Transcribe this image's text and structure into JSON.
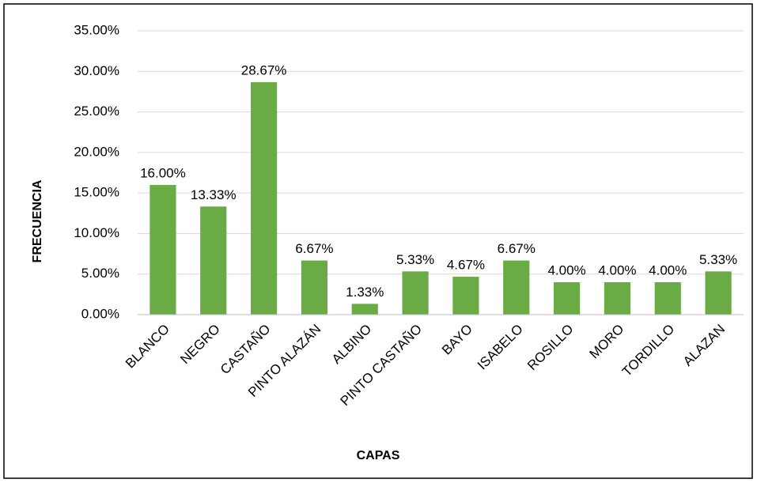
{
  "chart_data": {
    "type": "bar",
    "x_label": "CAPAS",
    "y_label": "FRECUENCIA",
    "categories": [
      "BLANCO",
      "NEGRO",
      "CASTAÑO",
      "PINTO ALAZÁN",
      "ALBINO",
      "PINTO CASTAÑO",
      "BAYO",
      "ISABELO",
      "ROSILLO",
      "MORO",
      "TORDILLO",
      "ALAZAN"
    ],
    "values": [
      16.0,
      13.33,
      28.67,
      6.67,
      1.33,
      5.33,
      4.67,
      6.67,
      4.0,
      4.0,
      4.0,
      5.33
    ],
    "value_labels": [
      "16.00%",
      "13.33%",
      "28.67%",
      "6.67%",
      "1.33%",
      "5.33%",
      "4.67%",
      "6.67%",
      "4.00%",
      "4.00%",
      "4.00%",
      "5.33%"
    ],
    "color": "#6aab45",
    "ylim": [
      0,
      35
    ],
    "yticks": [
      {
        "value": 0,
        "label": "0.00%"
      },
      {
        "value": 5,
        "label": "5.00%"
      },
      {
        "value": 10,
        "label": "10.00%"
      },
      {
        "value": 15,
        "label": "15.00%"
      },
      {
        "value": 20,
        "label": "20.00%"
      },
      {
        "value": 25,
        "label": "25.00%"
      },
      {
        "value": 30,
        "label": "30.00%"
      },
      {
        "value": 35,
        "label": "35.00%"
      }
    ],
    "grid": true
  }
}
